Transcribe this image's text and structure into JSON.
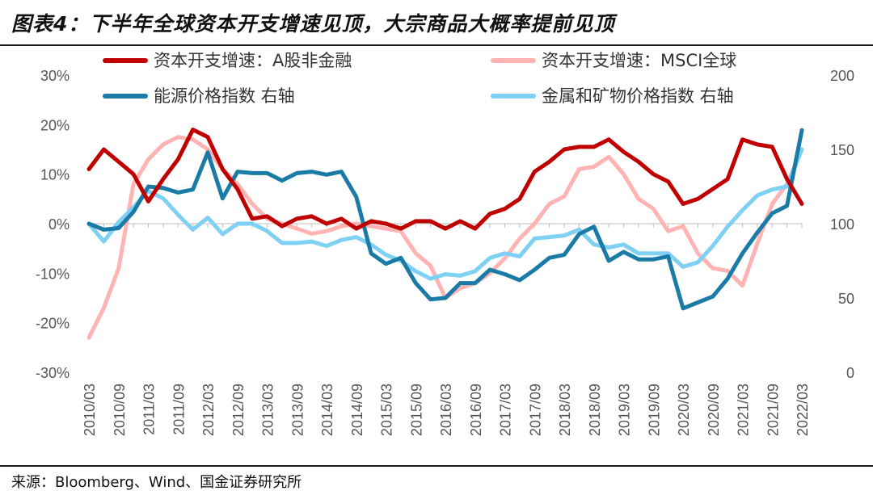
{
  "header": {
    "title": "图表4：下半年全球资本开支增速见顶，大宗商品大概率提前见顶"
  },
  "footer": {
    "source": "来源：Bloomberg、Wind、国金证券研究所"
  },
  "chart_data": {
    "type": "line",
    "title": "图表4：下半年全球资本开支增速见顶，大宗商品大概率提前见顶",
    "x": [
      "2010/03",
      "2010/06",
      "2010/09",
      "2010/12",
      "2011/03",
      "2011/06",
      "2011/09",
      "2011/12",
      "2012/03",
      "2012/06",
      "2012/09",
      "2012/12",
      "2013/03",
      "2013/06",
      "2013/09",
      "2013/12",
      "2014/03",
      "2014/06",
      "2014/09",
      "2014/12",
      "2015/03",
      "2015/06",
      "2015/09",
      "2015/12",
      "2016/03",
      "2016/06",
      "2016/09",
      "2016/12",
      "2017/03",
      "2017/06",
      "2017/09",
      "2017/12",
      "2018/03",
      "2018/06",
      "2018/09",
      "2018/12",
      "2019/03",
      "2019/06",
      "2019/09",
      "2019/12",
      "2020/03",
      "2020/06",
      "2020/09",
      "2020/12",
      "2021/03",
      "2021/06",
      "2021/09",
      "2021/12",
      "2022/03"
    ],
    "x_tick_labels": [
      "2010/03",
      "2010/09",
      "2011/03",
      "2011/09",
      "2012/03",
      "2012/09",
      "2013/03",
      "2013/09",
      "2014/03",
      "2014/09",
      "2015/03",
      "2015/09",
      "2016/03",
      "2016/09",
      "2017/03",
      "2017/09",
      "2018/03",
      "2018/09",
      "2019/03",
      "2019/09",
      "2020/03",
      "2020/09",
      "2021/03",
      "2021/09",
      "2022/03"
    ],
    "y_left": {
      "lim": [
        -30,
        30
      ],
      "ticks": [
        -30,
        -20,
        -10,
        0,
        10,
        20,
        30
      ],
      "tick_labels": [
        "-30%",
        "-20%",
        "-10%",
        "0%",
        "10%",
        "20%",
        "30%"
      ]
    },
    "y_right": {
      "lim": [
        0,
        200
      ],
      "ticks": [
        0,
        50,
        100,
        150,
        200
      ],
      "tick_labels": [
        "0",
        "50",
        "100",
        "150",
        "200"
      ]
    },
    "legend_position": "top",
    "series": [
      {
        "name": "资本开支增速：A股非金融",
        "axis": "left",
        "color": "#c00000",
        "values": [
          11,
          15,
          12.5,
          10,
          4.5,
          9,
          13,
          19,
          17.5,
          11,
          7,
          1,
          1.5,
          -0.5,
          1,
          1.5,
          0,
          1,
          -1,
          0.5,
          0,
          -1,
          0.5,
          0.5,
          -1,
          0.5,
          -1,
          2,
          3,
          5,
          10.5,
          12.5,
          15,
          15.5,
          15.5,
          17,
          14.5,
          12.5,
          10,
          8.5,
          4,
          5,
          7,
          9,
          17,
          16,
          15.5,
          9,
          4
        ]
      },
      {
        "name": "资本开支增速：MSCI全球",
        "axis": "left",
        "color": "#ffb3b3",
        "values": [
          -23,
          -17,
          -9,
          8,
          13,
          16,
          17.5,
          17,
          15,
          11,
          8,
          4,
          1,
          0,
          -1,
          -2,
          -1.5,
          -0.5,
          0,
          -0.5,
          -1,
          -1.5,
          -6,
          -8.5,
          -15,
          -13,
          -12,
          -10,
          -7,
          -3,
          0,
          4,
          5.5,
          11,
          11.5,
          13.5,
          10,
          5,
          3,
          -1.5,
          -0.5,
          -6,
          -9,
          -9.5,
          -12.5,
          -4,
          4,
          8,
          15
        ]
      },
      {
        "name": "能源价格指数 右轴",
        "axis": "right",
        "color": "#1a7ba6",
        "values": [
          100,
          96,
          97,
          108,
          125,
          124,
          121,
          123,
          148,
          117,
          135,
          134,
          134,
          129,
          134,
          135,
          133,
          135,
          118,
          80,
          73,
          77,
          60,
          49,
          50,
          60,
          60,
          69,
          66,
          62,
          69,
          77,
          79,
          93,
          98,
          75,
          81,
          76,
          76,
          78,
          43,
          47,
          51,
          63,
          80,
          94,
          107,
          112,
          163
        ]
      },
      {
        "name": "金属和矿物价格指数 右轴",
        "axis": "right",
        "color": "#7ed0f5",
        "values": [
          100,
          88,
          101,
          111,
          122,
          117,
          106,
          96,
          104,
          93,
          100,
          100,
          95,
          87,
          87,
          88,
          85,
          89,
          91,
          86,
          79,
          75,
          68,
          63,
          66,
          65,
          68,
          77,
          80,
          78,
          90,
          91,
          92,
          96,
          86,
          84,
          86,
          80,
          80,
          80,
          71,
          74,
          85,
          98,
          109,
          119,
          123,
          125,
          150
        ]
      }
    ]
  }
}
